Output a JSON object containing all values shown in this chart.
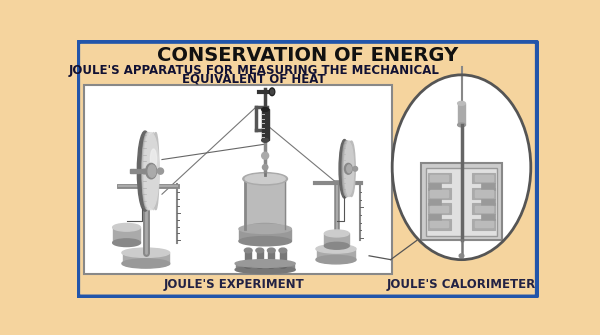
{
  "bg_color": "#F5D49E",
  "border_color": "#2255AA",
  "title": "CONSERVATION OF ENERGY",
  "subtitle_line1": "JOULE'S APPARATUS FOR MEASURING THE MECHANICAL",
  "subtitle_line2": "EQUIVALENT OF HEAT",
  "label_left": "JOULE'S EXPERIMENT",
  "label_right": "JOULE'S CALORIMETER",
  "main_box_bg": "#FFFFFF",
  "title_fontsize": 14,
  "subtitle_fontsize": 8.5,
  "label_fontsize": 8.5
}
